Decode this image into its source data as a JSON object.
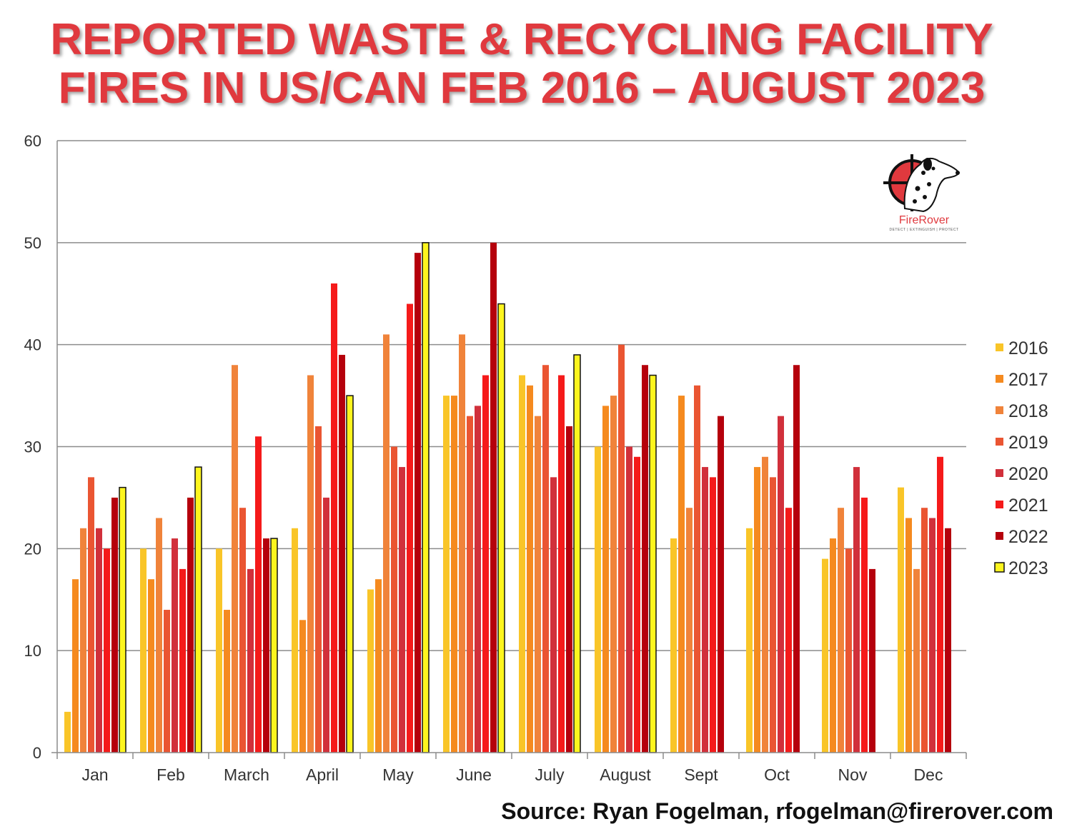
{
  "title": {
    "line1": "REPORTED WASTE & RECYCLING FACILITY",
    "line2": "FIRES IN US/CAN FEB 2016 – AUGUST 2023"
  },
  "source": "Source: Ryan Fogelman, rfogelman@firerover.com",
  "logo": {
    "name": "FireRover",
    "tagline": "DETECT | EXTINGUISH | PROTECT"
  },
  "colors": {
    "2016": "#f9c528",
    "2017": "#f58a1f",
    "2018": "#f0833a",
    "2019": "#ea5532",
    "2020": "#d1303b",
    "2021": "#f51a1a",
    "2022": "#b5000c",
    "2023": "#fdf51e",
    "title": "#e0393e",
    "grid": "#8c8c8c"
  },
  "chart_data": {
    "type": "bar",
    "title": "REPORTED WASTE & RECYCLING FACILITY FIRES IN US/CAN FEB 2016 – AUGUST 2023",
    "xlabel": "",
    "ylabel": "",
    "ylim": [
      0,
      60
    ],
    "yticks": [
      0,
      10,
      20,
      30,
      40,
      50,
      60
    ],
    "grid": true,
    "legend_position": "right",
    "categories": [
      "Jan",
      "Feb",
      "March",
      "April",
      "May",
      "June",
      "July",
      "August",
      "Sept",
      "Oct",
      "Nov",
      "Dec"
    ],
    "series": [
      {
        "name": "2016",
        "values": [
          4,
          20,
          20,
          22,
          16,
          35,
          37,
          30,
          21,
          22,
          19,
          26
        ]
      },
      {
        "name": "2017",
        "values": [
          17,
          17,
          14,
          13,
          17,
          35,
          36,
          34,
          35,
          28,
          21,
          23
        ]
      },
      {
        "name": "2018",
        "values": [
          22,
          23,
          38,
          37,
          41,
          41,
          33,
          35,
          24,
          29,
          24,
          18
        ]
      },
      {
        "name": "2019",
        "values": [
          27,
          14,
          24,
          32,
          30,
          33,
          38,
          40,
          36,
          27,
          20,
          24
        ]
      },
      {
        "name": "2020",
        "values": [
          22,
          21,
          18,
          25,
          28,
          34,
          27,
          30,
          28,
          33,
          28,
          23
        ]
      },
      {
        "name": "2021",
        "values": [
          20,
          18,
          31,
          46,
          44,
          37,
          37,
          29,
          27,
          24,
          25,
          29
        ]
      },
      {
        "name": "2022",
        "values": [
          25,
          25,
          21,
          39,
          49,
          50,
          32,
          38,
          33,
          38,
          18,
          22
        ]
      },
      {
        "name": "2023",
        "values": [
          26,
          28,
          21,
          35,
          50,
          44,
          39,
          37,
          null,
          null,
          null,
          null
        ]
      }
    ]
  }
}
